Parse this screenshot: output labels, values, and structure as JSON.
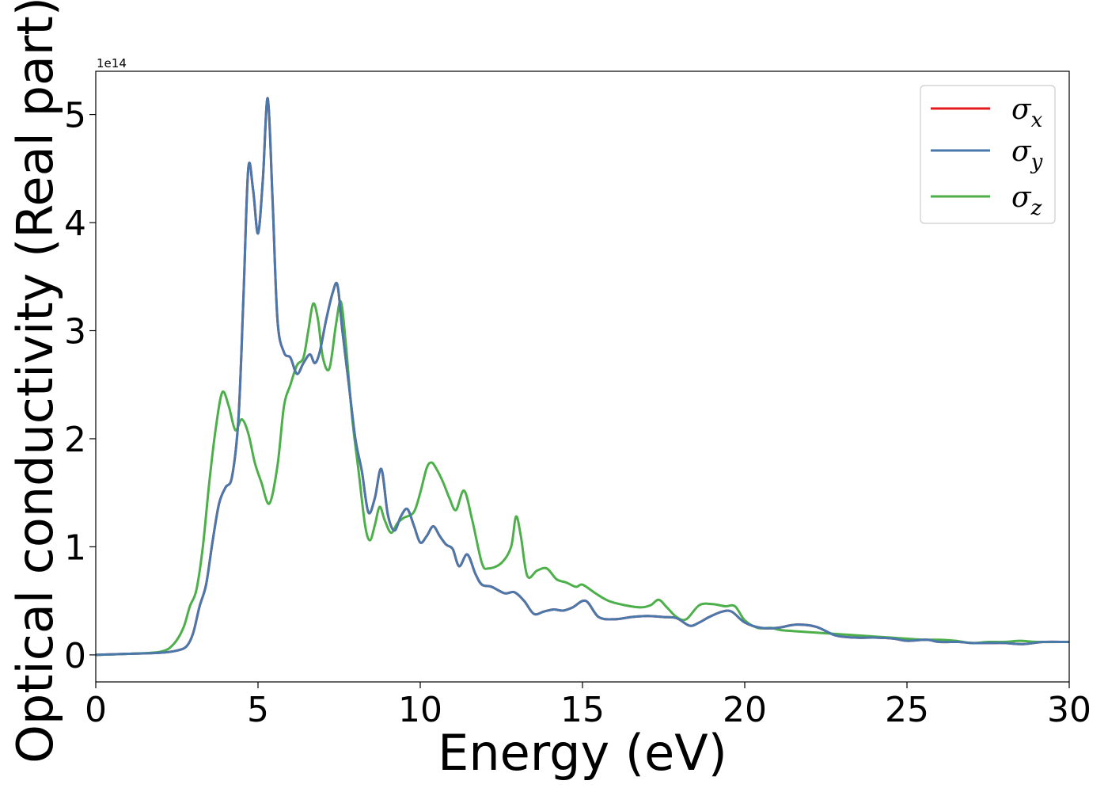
{
  "chart_data": {
    "type": "line",
    "xlabel": "Energy (eV)",
    "ylabel": "Optical conductivity (Real part)",
    "y_offset_label": "1e14",
    "xlim": [
      0,
      30
    ],
    "ylim": [
      -0.25,
      5.4
    ],
    "x_ticks": [
      0,
      5,
      10,
      15,
      20,
      25,
      30
    ],
    "y_ticks": [
      0,
      1,
      2,
      3,
      4,
      5
    ],
    "legend_position": "top-right",
    "grid": false,
    "series": [
      {
        "name": "σx",
        "label_main": "σ",
        "label_sub": "x",
        "color": "#e41a1c",
        "x": [
          0,
          1,
          2,
          2.5,
          2.8,
          3.0,
          3.2,
          3.4,
          3.6,
          3.8,
          4.0,
          4.2,
          4.4,
          4.55,
          4.7,
          4.85,
          5.0,
          5.15,
          5.3,
          5.45,
          5.6,
          5.8,
          6.0,
          6.2,
          6.4,
          6.6,
          6.75,
          6.9,
          7.1,
          7.3,
          7.45,
          7.6,
          7.8,
          8.0,
          8.2,
          8.4,
          8.6,
          8.8,
          9.0,
          9.2,
          9.4,
          9.6,
          9.8,
          10.0,
          10.2,
          10.4,
          10.6,
          10.8,
          11.0,
          11.2,
          11.45,
          11.7,
          11.9,
          12.2,
          12.6,
          12.9,
          13.2,
          13.5,
          13.8,
          14.1,
          14.4,
          14.7,
          15.1,
          15.5,
          16.0,
          16.5,
          17.0,
          17.5,
          17.9,
          18.3,
          18.6,
          18.9,
          19.3,
          19.6,
          20.0,
          20.5,
          21.0,
          21.6,
          22.2,
          22.8,
          23.4,
          24.0,
          24.6,
          25.0,
          25.6,
          26.0,
          26.6,
          27.0,
          27.6,
          28.0,
          28.6,
          29.2,
          30
        ],
        "y": [
          0,
          0.01,
          0.02,
          0.04,
          0.08,
          0.2,
          0.45,
          0.65,
          1.05,
          1.4,
          1.55,
          1.65,
          2.2,
          3.3,
          4.5,
          4.3,
          3.9,
          4.4,
          5.15,
          4.2,
          3.1,
          2.8,
          2.75,
          2.6,
          2.7,
          2.78,
          2.7,
          2.8,
          3.1,
          3.35,
          3.42,
          3.0,
          2.5,
          2.0,
          1.7,
          1.32,
          1.45,
          1.72,
          1.3,
          1.15,
          1.28,
          1.35,
          1.2,
          1.04,
          1.1,
          1.19,
          1.1,
          1.02,
          0.98,
          0.82,
          0.93,
          0.75,
          0.65,
          0.63,
          0.57,
          0.58,
          0.5,
          0.38,
          0.4,
          0.42,
          0.41,
          0.44,
          0.5,
          0.35,
          0.33,
          0.35,
          0.36,
          0.35,
          0.34,
          0.27,
          0.3,
          0.35,
          0.4,
          0.4,
          0.3,
          0.25,
          0.25,
          0.28,
          0.26,
          0.18,
          0.16,
          0.16,
          0.15,
          0.13,
          0.14,
          0.12,
          0.12,
          0.11,
          0.11,
          0.11,
          0.1,
          0.12,
          0.12
        ]
      },
      {
        "name": "σy",
        "label_main": "σ",
        "label_sub": "y",
        "color": "#4a78ab",
        "x": [
          0,
          1,
          2,
          2.5,
          2.8,
          3.0,
          3.2,
          3.4,
          3.6,
          3.8,
          4.0,
          4.2,
          4.4,
          4.55,
          4.7,
          4.85,
          5.0,
          5.15,
          5.3,
          5.45,
          5.6,
          5.8,
          6.0,
          6.2,
          6.4,
          6.6,
          6.75,
          6.9,
          7.1,
          7.3,
          7.45,
          7.6,
          7.8,
          8.0,
          8.2,
          8.4,
          8.6,
          8.8,
          9.0,
          9.2,
          9.4,
          9.6,
          9.8,
          10.0,
          10.2,
          10.4,
          10.6,
          10.8,
          11.0,
          11.2,
          11.45,
          11.7,
          11.9,
          12.2,
          12.6,
          12.9,
          13.2,
          13.5,
          13.8,
          14.1,
          14.4,
          14.7,
          15.1,
          15.5,
          16.0,
          16.5,
          17.0,
          17.5,
          17.9,
          18.3,
          18.6,
          18.9,
          19.3,
          19.6,
          20.0,
          20.5,
          21.0,
          21.6,
          22.2,
          22.8,
          23.4,
          24.0,
          24.6,
          25.0,
          25.6,
          26.0,
          26.6,
          27.0,
          27.6,
          28.0,
          28.6,
          29.2,
          30
        ],
        "y": [
          0,
          0.01,
          0.02,
          0.04,
          0.08,
          0.2,
          0.45,
          0.65,
          1.05,
          1.4,
          1.55,
          1.65,
          2.2,
          3.3,
          4.5,
          4.3,
          3.9,
          4.4,
          5.15,
          4.2,
          3.1,
          2.8,
          2.75,
          2.6,
          2.7,
          2.78,
          2.7,
          2.8,
          3.1,
          3.35,
          3.42,
          3.0,
          2.5,
          2.0,
          1.7,
          1.32,
          1.45,
          1.72,
          1.3,
          1.15,
          1.28,
          1.35,
          1.2,
          1.04,
          1.1,
          1.19,
          1.1,
          1.02,
          0.98,
          0.82,
          0.93,
          0.75,
          0.65,
          0.63,
          0.57,
          0.58,
          0.5,
          0.38,
          0.4,
          0.42,
          0.41,
          0.44,
          0.5,
          0.35,
          0.33,
          0.35,
          0.36,
          0.35,
          0.34,
          0.27,
          0.3,
          0.35,
          0.4,
          0.4,
          0.3,
          0.25,
          0.25,
          0.28,
          0.26,
          0.18,
          0.16,
          0.16,
          0.15,
          0.13,
          0.14,
          0.12,
          0.12,
          0.11,
          0.11,
          0.11,
          0.1,
          0.12,
          0.12
        ]
      },
      {
        "name": "σz",
        "label_main": "σ",
        "label_sub": "z",
        "color": "#4daf4a",
        "x": [
          0,
          1,
          2,
          2.4,
          2.7,
          2.9,
          3.1,
          3.3,
          3.5,
          3.7,
          3.9,
          4.1,
          4.3,
          4.5,
          4.7,
          4.9,
          5.1,
          5.35,
          5.6,
          5.8,
          6.0,
          6.2,
          6.4,
          6.55,
          6.7,
          6.85,
          7.0,
          7.2,
          7.4,
          7.55,
          7.7,
          7.9,
          8.1,
          8.3,
          8.45,
          8.6,
          8.75,
          8.9,
          9.1,
          9.3,
          9.5,
          9.8,
          10.0,
          10.2,
          10.35,
          10.5,
          10.7,
          10.9,
          11.1,
          11.35,
          11.6,
          11.9,
          12.1,
          12.5,
          12.8,
          12.95,
          13.1,
          13.3,
          13.6,
          13.9,
          14.2,
          14.5,
          14.8,
          15.0,
          15.4,
          15.8,
          16.3,
          16.8,
          17.1,
          17.35,
          17.6,
          17.9,
          18.2,
          18.6,
          19.0,
          19.4,
          19.7,
          20.0,
          20.4,
          20.8,
          21.1,
          21.5,
          22.0,
          22.5,
          23.0,
          23.5,
          24.0,
          24.5,
          25.0,
          25.5,
          26.0,
          26.5,
          27.0,
          27.5,
          28.0,
          28.5,
          29.0,
          30
        ],
        "y": [
          0,
          0.01,
          0.03,
          0.1,
          0.25,
          0.45,
          0.6,
          1.0,
          1.6,
          2.1,
          2.43,
          2.3,
          2.08,
          2.18,
          2.05,
          1.78,
          1.6,
          1.4,
          1.75,
          2.3,
          2.5,
          2.68,
          2.75,
          3.0,
          3.25,
          3.1,
          2.75,
          2.65,
          3.05,
          3.27,
          2.9,
          2.2,
          1.7,
          1.2,
          1.06,
          1.2,
          1.37,
          1.25,
          1.13,
          1.22,
          1.27,
          1.32,
          1.5,
          1.73,
          1.78,
          1.72,
          1.6,
          1.45,
          1.34,
          1.52,
          1.25,
          0.85,
          0.8,
          0.85,
          1.0,
          1.28,
          1.1,
          0.73,
          0.78,
          0.8,
          0.7,
          0.67,
          0.63,
          0.65,
          0.57,
          0.5,
          0.46,
          0.44,
          0.46,
          0.51,
          0.44,
          0.35,
          0.33,
          0.46,
          0.47,
          0.45,
          0.45,
          0.32,
          0.25,
          0.25,
          0.23,
          0.22,
          0.21,
          0.2,
          0.19,
          0.18,
          0.17,
          0.16,
          0.15,
          0.14,
          0.14,
          0.13,
          0.11,
          0.12,
          0.12,
          0.13,
          0.12,
          0.12
        ]
      }
    ]
  }
}
